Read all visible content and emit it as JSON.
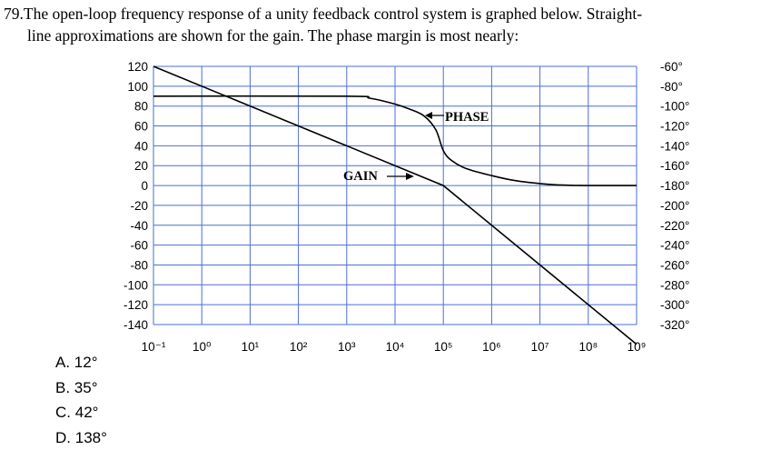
{
  "question": {
    "number": "79.",
    "line1": "The open-loop frequency response of a unity feedback control system is graphed below. Straight-",
    "line2": "line approximations are shown for the gain. The phase margin is most nearly:"
  },
  "chart_data": {
    "type": "line",
    "x_scale": "log",
    "x_ticks": [
      "10⁻¹",
      "10⁰",
      "10¹",
      "10²",
      "10³",
      "10⁴",
      "10⁵",
      "10⁶",
      "10⁷",
      "10⁸",
      "10⁹"
    ],
    "xlim": [
      0.1,
      1000000000
    ],
    "y_left_ticks": [
      "120",
      "100",
      "80",
      "60",
      "40",
      "20",
      "0",
      "-20",
      "-40",
      "-60",
      "-80",
      "-100",
      "-120",
      "-140"
    ],
    "y_left_lim": [
      -140,
      120
    ],
    "y_right_ticks": [
      "-60°",
      "-80°",
      "-100°",
      "-120°",
      "-140°",
      "-160°",
      "-180°",
      "-200°",
      "-220°",
      "-240°",
      "-260°",
      "-280°",
      "-300°",
      "-320°"
    ],
    "y_right_lim": [
      -320,
      -60
    ],
    "grid": true,
    "gain_series": {
      "name": "GAIN",
      "x": [
        0.1,
        100000,
        1000000000
      ],
      "y": [
        120,
        0,
        -160
      ]
    },
    "phase_series": {
      "name": "PHASE",
      "x": [
        0.1,
        1000,
        3000,
        10000,
        20000,
        40000,
        70000,
        100000,
        150000,
        300000,
        1000000,
        3000000,
        10000000,
        30000000,
        100000000,
        1000000000
      ],
      "y": [
        -90,
        -90,
        -92,
        -98,
        -103,
        -110,
        -124,
        -145,
        -155,
        -163,
        -170,
        -175,
        -178,
        -179.6,
        -180,
        -180
      ]
    },
    "annotations": [
      "PHASE",
      "GAIN"
    ]
  },
  "choices": [
    {
      "letter": "A.",
      "text": "12°"
    },
    {
      "letter": "B.",
      "text": "35°"
    },
    {
      "letter": "C.",
      "text": "42°"
    },
    {
      "letter": "D.",
      "text": "138°"
    }
  ]
}
